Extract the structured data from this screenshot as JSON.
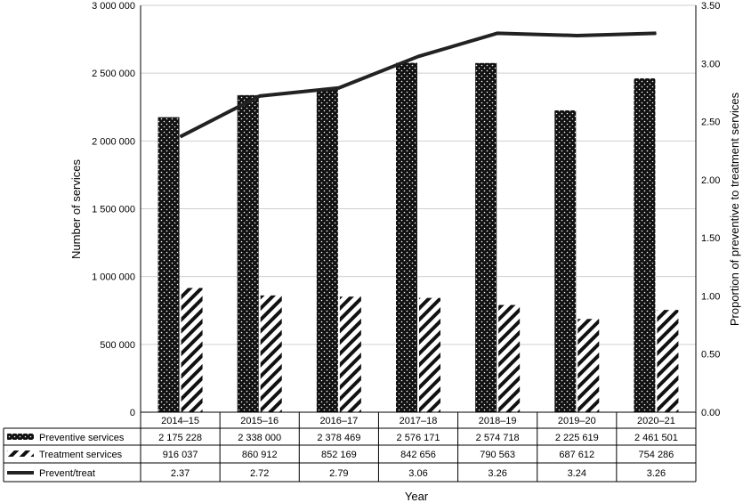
{
  "chart_data": {
    "type": "bar",
    "categories": [
      "2014–15",
      "2015–16",
      "2016–17",
      "2017–18",
      "2018–19",
      "2019–20",
      "2020–21"
    ],
    "series": [
      {
        "name": "Preventive services",
        "type": "bar",
        "axis": "left",
        "values": [
          2175228,
          2338000,
          2378469,
          2576171,
          2574718,
          2225619,
          2461501
        ],
        "labels": [
          "2 175 228",
          "2 338 000",
          "2 378 469",
          "2 576 171",
          "2 574 718",
          "2 225 619",
          "2 461 501"
        ]
      },
      {
        "name": "Treatment services",
        "type": "bar",
        "axis": "left",
        "values": [
          916037,
          860912,
          852169,
          842656,
          790563,
          687612,
          754286
        ],
        "labels": [
          "916 037",
          "860 912",
          "852 169",
          "842 656",
          "790 563",
          "687 612",
          "754 286"
        ]
      },
      {
        "name": "Prevent/treat",
        "type": "line",
        "axis": "right",
        "values": [
          2.37,
          2.72,
          2.79,
          3.06,
          3.26,
          3.24,
          3.26
        ],
        "labels": [
          "2.37",
          "2.72",
          "2.79",
          "3.06",
          "3.26",
          "3.24",
          "3.26"
        ]
      }
    ],
    "xlabel": "Year",
    "ylabel": "Number of services",
    "y2label": "Proportion of preventive to treatment services",
    "ylim": [
      0,
      3000000
    ],
    "y2lim": [
      0,
      3.5
    ],
    "yticks": [
      "0",
      "500 000",
      "1 000 000",
      "1 500 000",
      "2 000 000",
      "2 500 000",
      "3 000 000"
    ],
    "y2ticks": [
      "0.00",
      "0.50",
      "1.00",
      "1.50",
      "2.00",
      "2.50",
      "3.00",
      "3.50"
    ],
    "grid": true,
    "legend": "data table below chart"
  }
}
